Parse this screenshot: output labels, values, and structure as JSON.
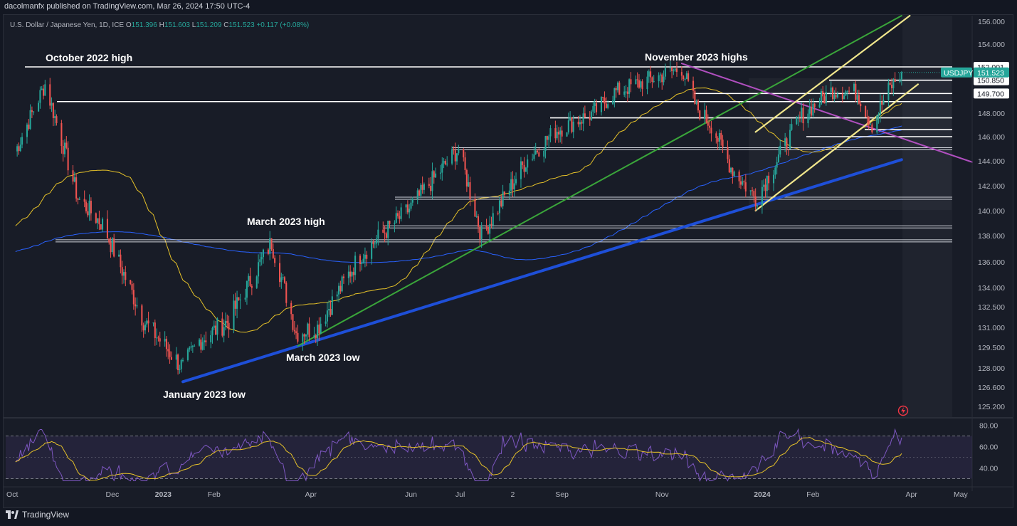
{
  "publisher_line": "dacolmanfx published on TradingView.com, Mar 26, 2024 17:50 UTC-4",
  "legend": {
    "name": "U.S. Dollar / Japanese Yen, 1D, ICE",
    "o_label": "O",
    "o": "151.396",
    "h_label": "H",
    "h": "151.603",
    "l_label": "L",
    "l": "151.209",
    "c_label": "C",
    "c": "151.523",
    "change": "+0.117 (+0.08%)"
  },
  "footer": {
    "brand": "TradingView"
  },
  "colors": {
    "background": "#131722",
    "up": "#26a69a",
    "down": "#ef5350",
    "ma50": "#e6c229",
    "ma200": "#2962ff",
    "uptrend_long": "#1e4fd8",
    "uptrend_mid": "#3aa63a",
    "channel": "#f0e68c",
    "downtrend": "#b04fbf",
    "rsi_line": "#7e57c2",
    "rsi_signal": "#e6c229",
    "rsi_band": "#7e57c2"
  },
  "chart_data": [
    {
      "type": "candlestick",
      "symbol": "USDJPY",
      "interval": "1D",
      "ylim": [
        124.5,
        156.5
      ],
      "y_ticks": [
        "156.000",
        "154.000",
        "152.001",
        "150.850",
        "149.700",
        "148.000",
        "146.000",
        "144.000",
        "142.000",
        "140.000",
        "138.000",
        "136.000",
        "134.000",
        "132.500",
        "131.000",
        "129.500",
        "128.000",
        "126.600",
        "125.200"
      ],
      "x_ticks": [
        "Oct",
        "Dec",
        "2023",
        "Feb",
        "Apr",
        "Jun",
        "Jul",
        "2",
        "Sep",
        "Nov",
        "2024",
        "Feb",
        "Apr",
        "May"
      ],
      "last_price": {
        "label": "USDJPY",
        "value": "151.523"
      },
      "annotations": [
        "October 2022 high",
        "November 2023 highs",
        "March 2023 high",
        "March 2023 low",
        "January 2023 low"
      ],
      "horizontal_levels": [
        152.0,
        150.85,
        149.7,
        149.0,
        147.6,
        146.6,
        146.0,
        145.0,
        141.0,
        138.7,
        137.6
      ],
      "series": [
        {
          "name": "price",
          "points": [
            [
              "2022-10-03",
              144.8
            ],
            [
              "2022-10-21",
              150.5
            ],
            [
              "2022-11-10",
              141.0
            ],
            [
              "2022-11-25",
              138.9
            ],
            [
              "2022-12-20",
              131.5
            ],
            [
              "2023-01-13",
              128.0
            ],
            [
              "2023-01-23",
              130.0
            ],
            [
              "2023-02-10",
              131.5
            ],
            [
              "2023-03-08",
              137.5
            ],
            [
              "2023-03-23",
              130.6
            ],
            [
              "2023-04-05",
              131.0
            ],
            [
              "2023-05-01",
              136.5
            ],
            [
              "2023-05-30",
              140.0
            ],
            [
              "2023-06-30",
              145.0
            ],
            [
              "2023-07-14",
              138.0
            ],
            [
              "2023-08-10",
              144.0
            ],
            [
              "2023-08-28",
              146.5
            ],
            [
              "2023-09-20",
              148.0
            ],
            [
              "2023-10-03",
              149.8
            ],
            [
              "2023-11-13",
              151.9
            ],
            [
              "2023-11-22",
              148.5
            ],
            [
              "2023-12-01",
              147.0
            ],
            [
              "2023-12-13",
              143.5
            ],
            [
              "2023-12-28",
              141.0
            ],
            [
              "2024-01-10",
              144.0
            ],
            [
              "2024-01-25",
              147.8
            ],
            [
              "2024-02-13",
              150.0
            ],
            [
              "2024-02-28",
              149.8
            ],
            [
              "2024-03-08",
              147.0
            ],
            [
              "2024-03-18",
              150.0
            ],
            [
              "2024-03-26",
              151.523
            ]
          ]
        }
      ]
    },
    {
      "type": "line",
      "name": "RSI",
      "ylim": [
        25,
        85
      ],
      "y_ticks": [
        "80.00",
        "60.00",
        "40.00"
      ],
      "bands": [
        70,
        30
      ]
    }
  ]
}
